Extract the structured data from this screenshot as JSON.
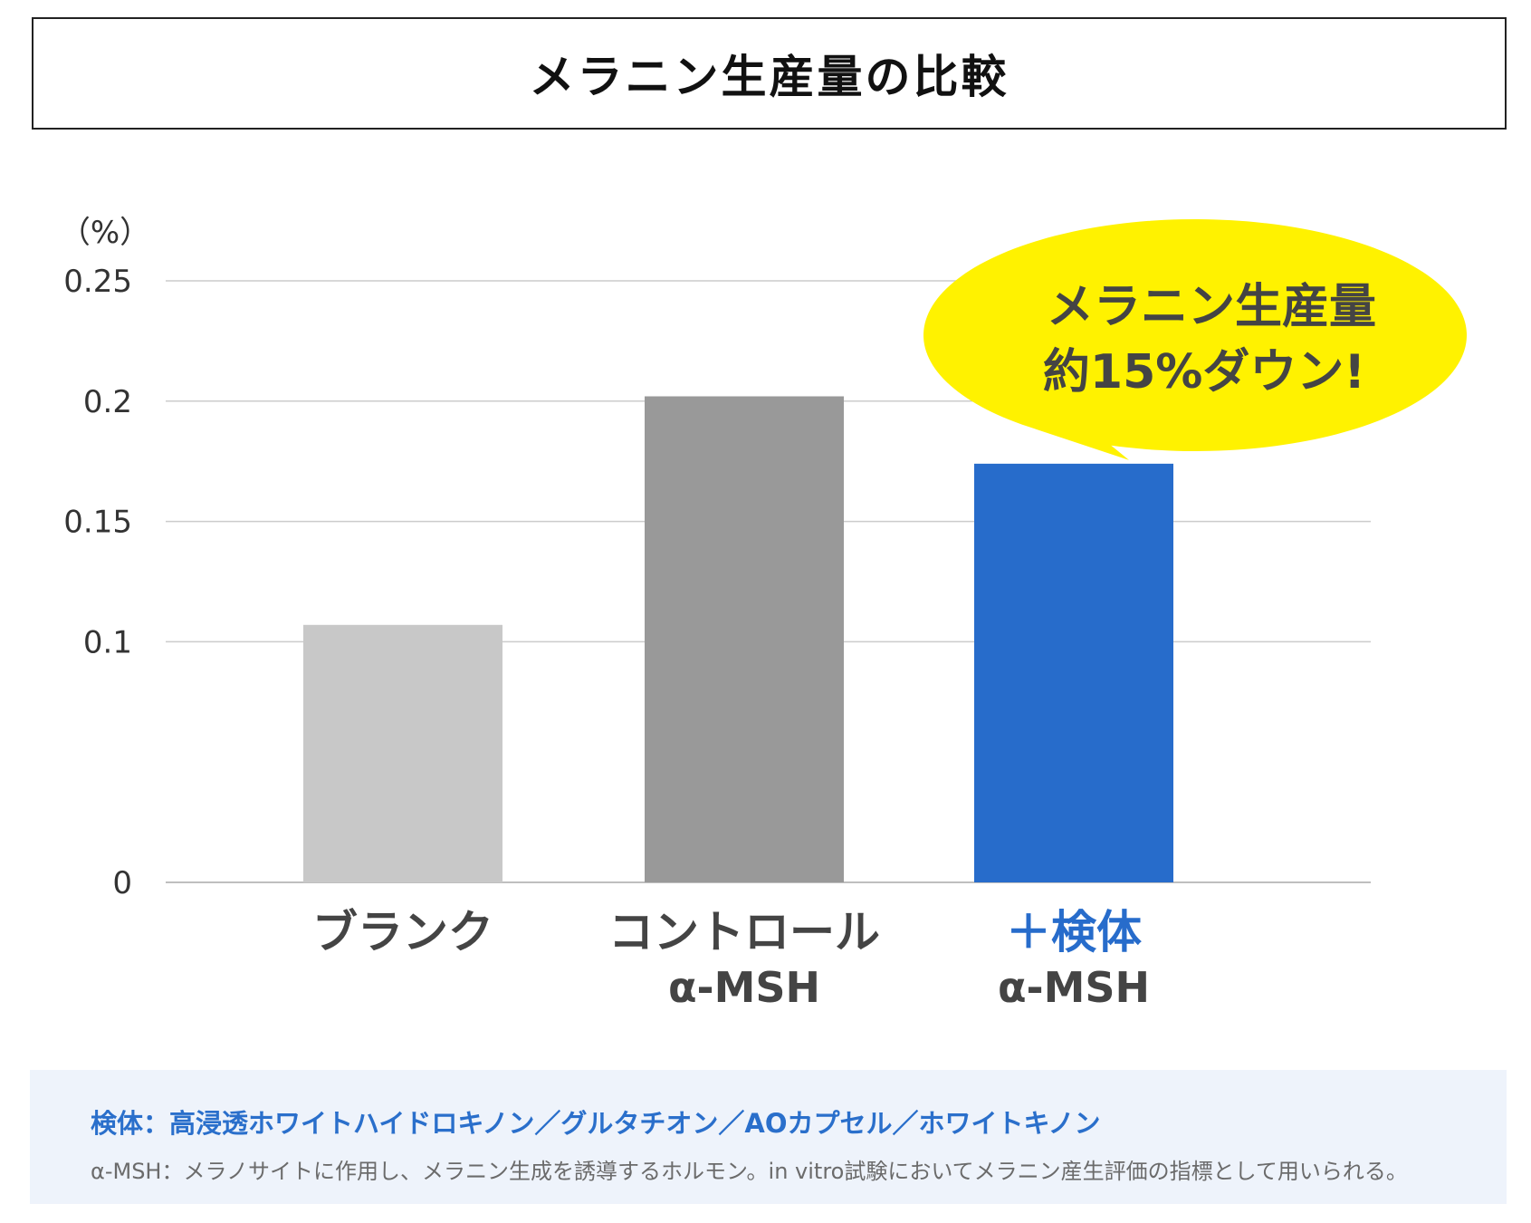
{
  "title": "メラニン生産量の比較",
  "chart_data": {
    "type": "bar",
    "unit_label": "（%）",
    "ylim": [
      0,
      0.25
    ],
    "yticks": [
      "0",
      "0.1",
      "0.15",
      "0.2",
      "0.25"
    ],
    "ytick_values": [
      0,
      0.1,
      0.15,
      0.2,
      0.25
    ],
    "grid": true,
    "categories": [
      {
        "line1": "ブランク",
        "line2": ""
      },
      {
        "line1": "コントロール",
        "line2": "α-MSH"
      },
      {
        "line1": "＋検体",
        "line2": "α-MSH"
      }
    ],
    "values": [
      0.107,
      0.202,
      0.174
    ],
    "colors": [
      "#c8c8c8",
      "#999999",
      "#276ccb"
    ],
    "label_colors": [
      "#444444",
      "#444444",
      "#276ccb"
    ],
    "callout": {
      "line1": "メラニン生産量",
      "line2": "約15%ダウン!",
      "color": "#fff200",
      "target": 2
    }
  },
  "notes": {
    "line1": "検体：高浸透ホワイトハイドロキノン／グルタチオン／AOカプセル／ホワイトキノン",
    "line2": "α-MSH：メラノサイトに作用し、メラニン生成を誘導するホルモン。in vitro試験においてメラニン産生評価の指標として用いられる。"
  }
}
